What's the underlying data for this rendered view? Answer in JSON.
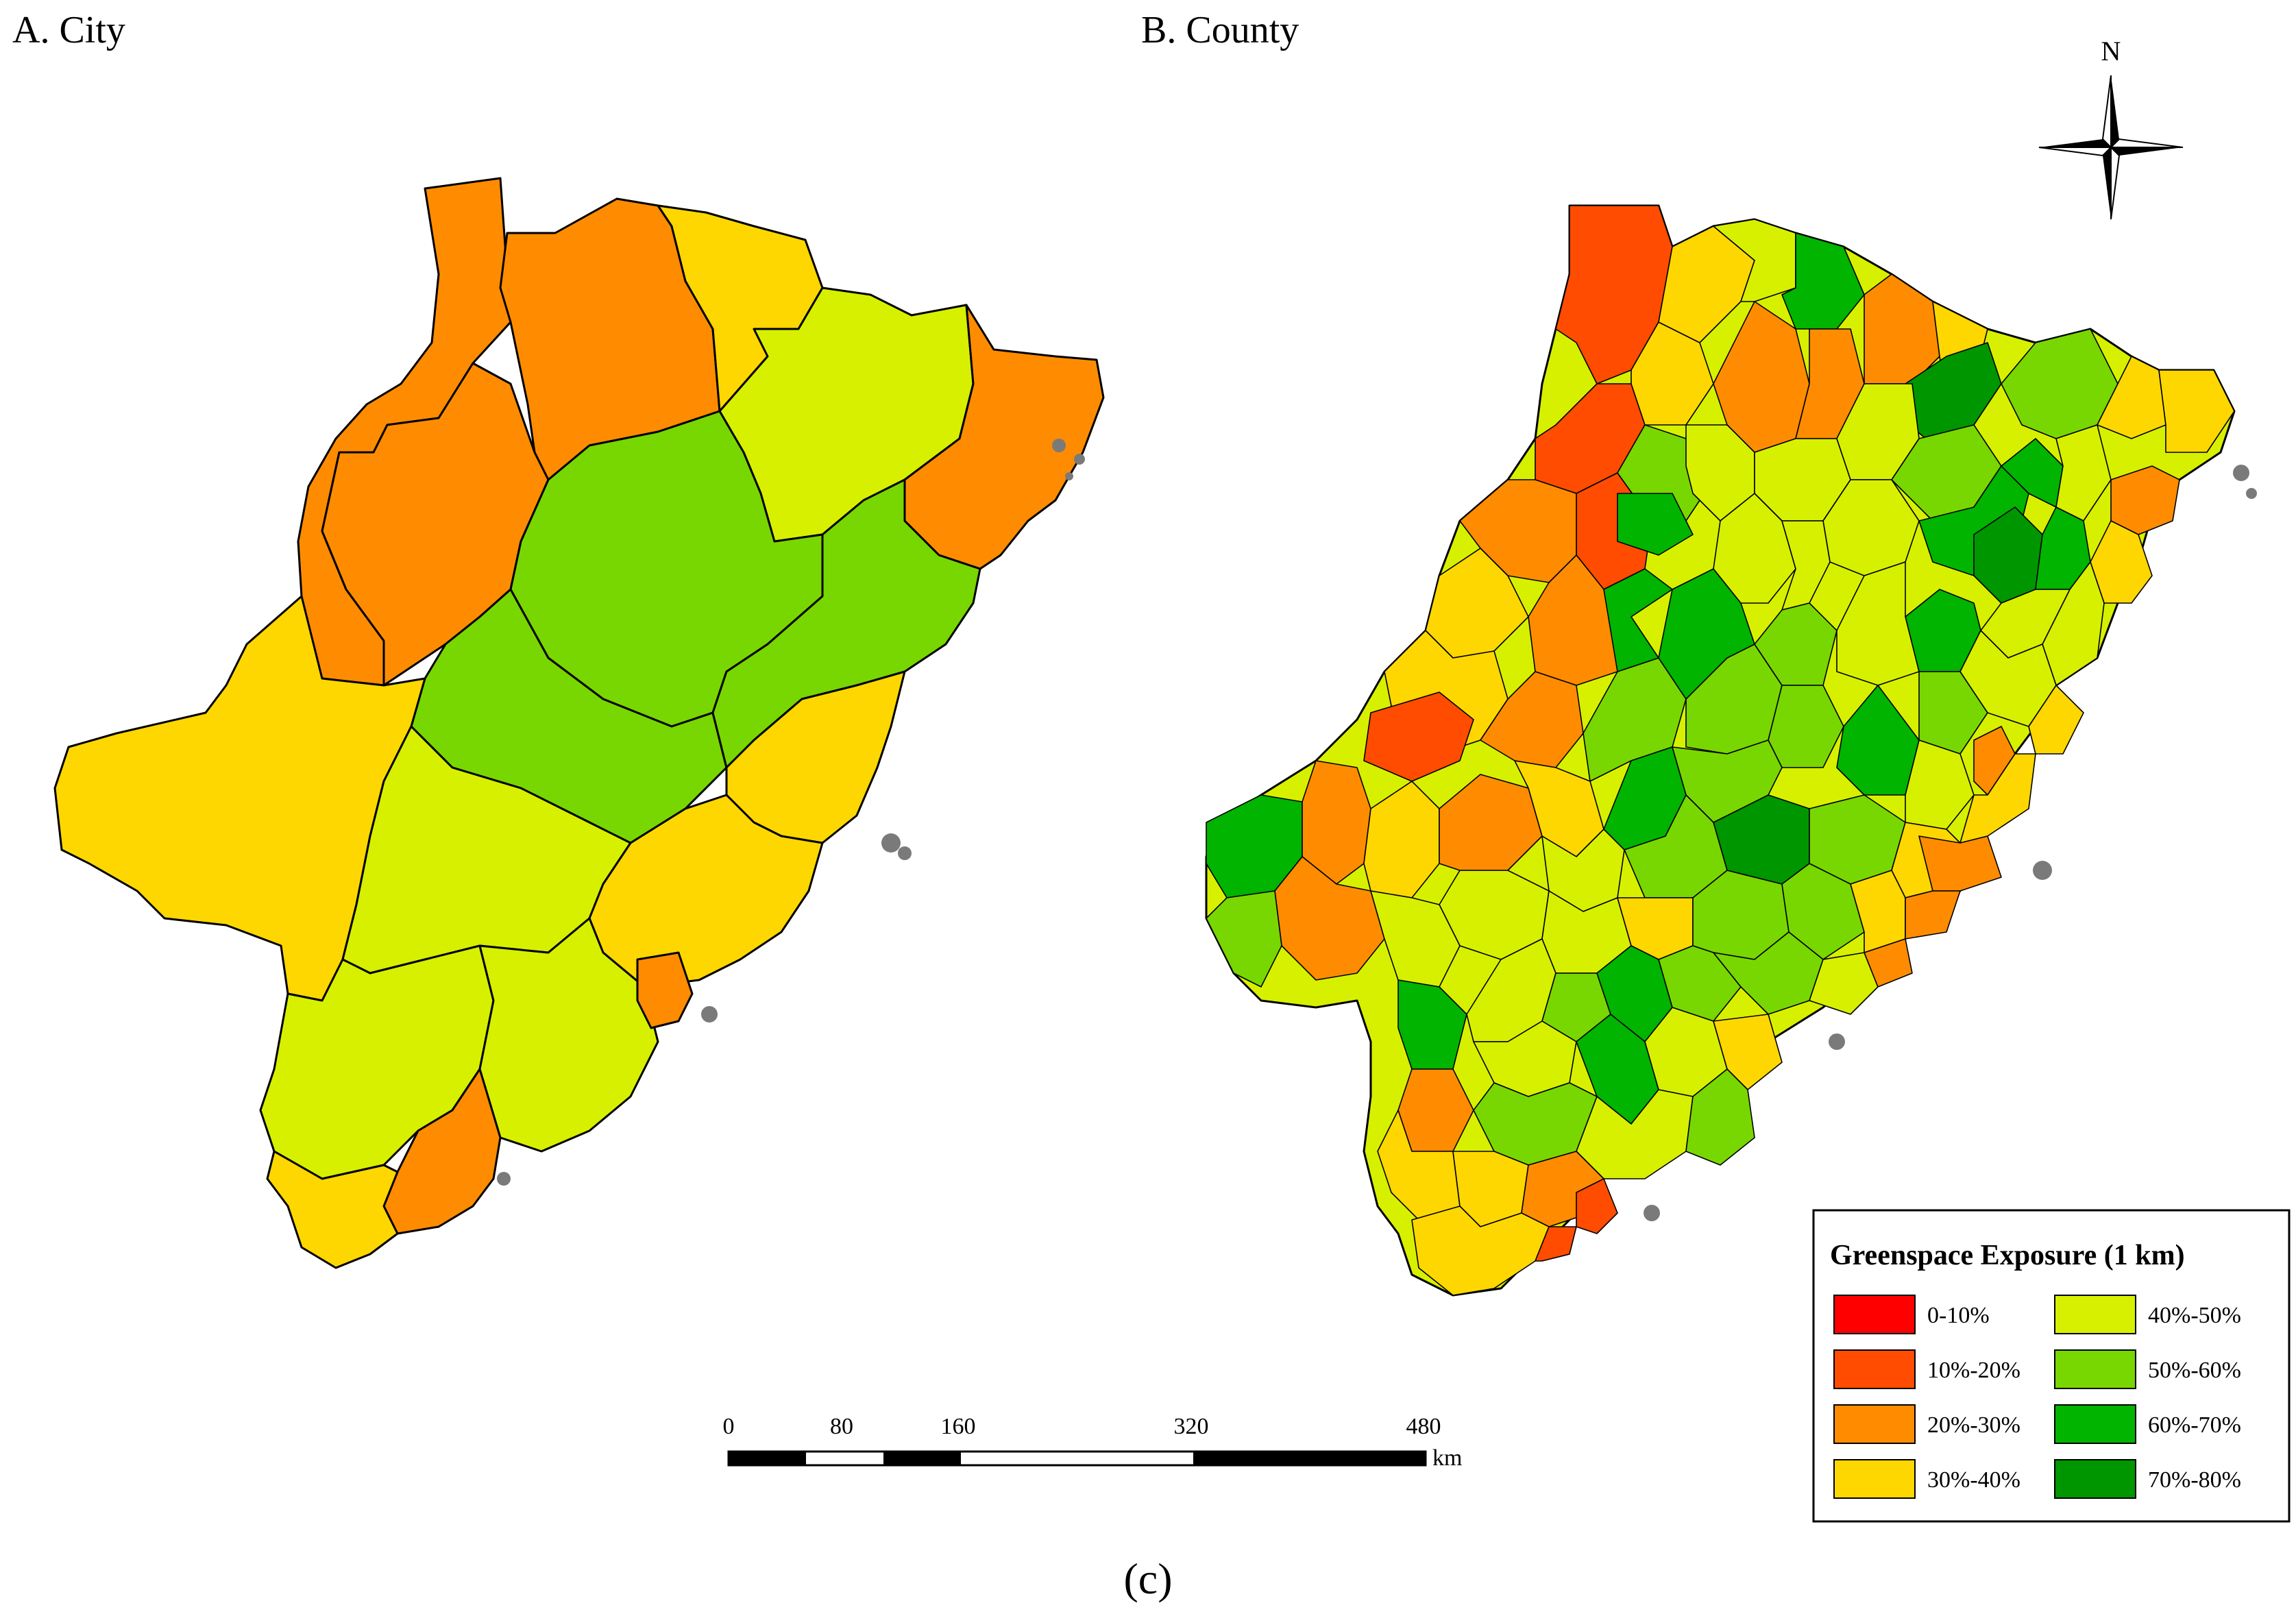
{
  "panels": {
    "city": {
      "title": "A. City"
    },
    "county": {
      "title": "B. County"
    }
  },
  "north_arrow": {
    "label": "N",
    "icon": "north-arrow-icon"
  },
  "scale_bar": {
    "ticks": [
      "0",
      "80",
      "160",
      "320",
      "480"
    ],
    "unit": "km"
  },
  "legend": {
    "title": "Greenspace Exposure (1 km)",
    "items": [
      {
        "label": "0-10%",
        "color": "#ff0000"
      },
      {
        "label": "10%-20%",
        "color": "#ff4c00"
      },
      {
        "label": "20%-30%",
        "color": "#ff8c00"
      },
      {
        "label": "30%-40%",
        "color": "#ffd700"
      },
      {
        "label": "40%-50%",
        "color": "#d7f000"
      },
      {
        "label": "50%-60%",
        "color": "#78d700"
      },
      {
        "label": "60%-70%",
        "color": "#00b400"
      },
      {
        "label": "70%-80%",
        "color": "#009600"
      }
    ]
  },
  "caption": "(c)"
}
